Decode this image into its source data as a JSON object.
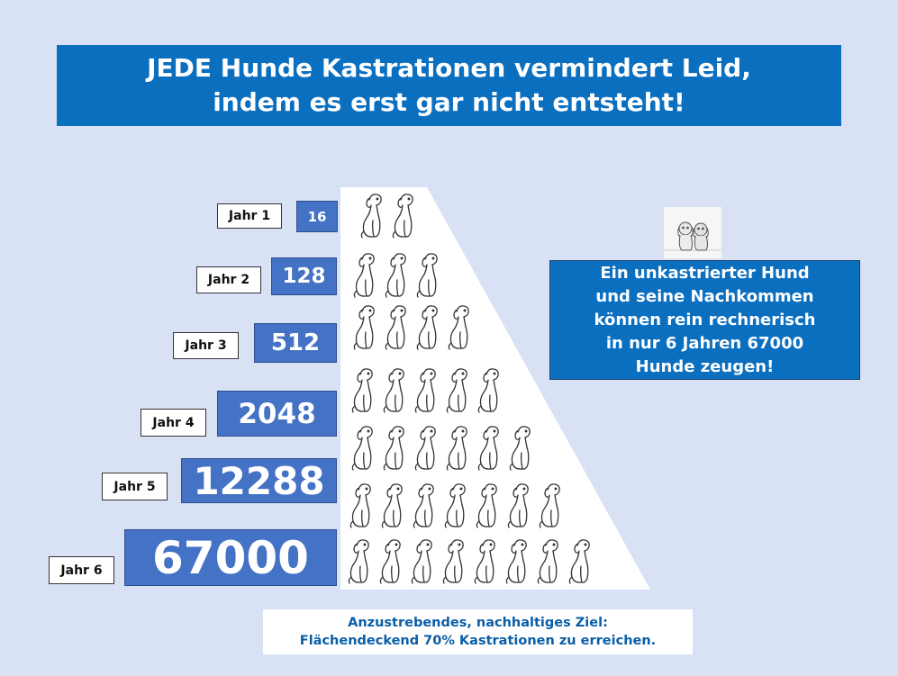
{
  "title": {
    "line1": "JEDE Hunde Kastrationen vermindert Leid,",
    "line2": "indem es erst gar nicht entsteht!"
  },
  "years": [
    {
      "label": "Jahr 1",
      "value": "16"
    },
    {
      "label": "Jahr 2",
      "value": "128"
    },
    {
      "label": "Jahr 3",
      "value": "512"
    },
    {
      "label": "Jahr 4",
      "value": "2048"
    },
    {
      "label": "Jahr 5",
      "value": "12288"
    },
    {
      "label": "Jahr 6",
      "value": "67000"
    }
  ],
  "dog_rows": [
    2,
    3,
    4,
    5,
    6,
    7,
    8
  ],
  "info": {
    "lines": [
      "Ein unkastrierter Hund",
      "und seine Nachkommen",
      "können rein rechnerisch",
      "in nur 6 Jahren 67000",
      "Hunde zeugen!"
    ]
  },
  "goal": {
    "line1": "Anzustrebendes, nachhaltiges Ziel:",
    "line2": "Flächendeckend 70% Kastrationen zu erreichen."
  },
  "colors": {
    "background": "#d9e1f4",
    "title_bg": "#0b6fc0",
    "value_bg": "#4472c4",
    "goal_text": "#0a5ea8"
  }
}
